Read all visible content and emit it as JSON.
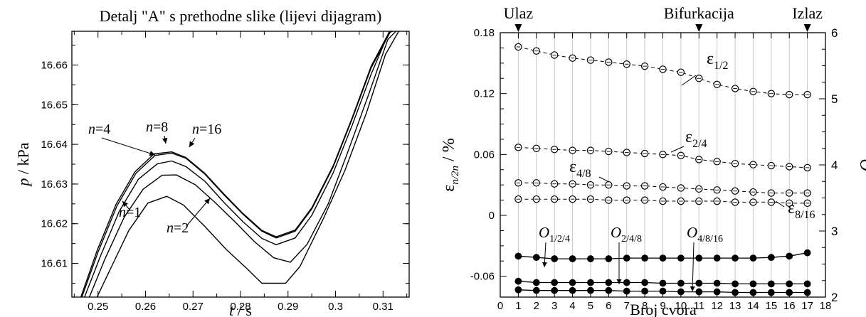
{
  "chart_data": [
    {
      "type": "line",
      "title": "Detalj \"A\" s prethodne slike (lijevi dijagram)",
      "xlabel": "t",
      "xunit": "s",
      "ylabel": "p",
      "yunit": "kPa",
      "xlim": [
        0.2445,
        0.3155
      ],
      "ylim": [
        16.6015,
        16.6685
      ],
      "xticks": [
        0.25,
        0.26,
        0.27,
        0.28,
        0.29,
        0.3,
        0.31
      ],
      "xtick_labels": [
        "0.25",
        "0.26",
        "0.27",
        "0.28",
        "0.29",
        "0.3",
        "0.31"
      ],
      "yticks": [
        16.61,
        16.62,
        16.63,
        16.64,
        16.65,
        16.66
      ],
      "ytick_labels": [
        "16.61",
        "16.62",
        "16.63",
        "16.64",
        "16.65",
        "16.66"
      ],
      "series": [
        {
          "name": "n=1",
          "x": [
            0.249,
            0.2525,
            0.2565,
            0.2605,
            0.2645,
            0.268,
            0.2725,
            0.277,
            0.2815,
            0.2845,
            0.2895,
            0.2925,
            0.2975,
            0.302,
            0.3065,
            0.3105,
            0.3133
          ],
          "y": [
            16.5995,
            16.6083,
            16.6183,
            16.6252,
            16.6269,
            16.6247,
            16.6193,
            16.6135,
            16.6085,
            16.605,
            16.605,
            16.6092,
            16.6214,
            16.6335,
            16.6479,
            16.6626,
            16.6685
          ]
        },
        {
          "name": "n=2",
          "x": [
            0.2475,
            0.2515,
            0.2555,
            0.2595,
            0.2635,
            0.2665,
            0.2705,
            0.2745,
            0.279,
            0.283,
            0.287,
            0.2905,
            0.294,
            0.2985,
            0.3025,
            0.307,
            0.311,
            0.3127
          ],
          "y": [
            16.5995,
            16.6112,
            16.6216,
            16.6287,
            16.6322,
            16.6323,
            16.6298,
            16.6255,
            16.6203,
            16.6154,
            16.6114,
            16.6103,
            16.6148,
            16.6251,
            16.6378,
            16.6527,
            16.6664,
            16.6685
          ]
        },
        {
          "name": "n=4",
          "x": [
            0.2465,
            0.2505,
            0.2545,
            0.2585,
            0.2625,
            0.2655,
            0.2685,
            0.2725,
            0.2765,
            0.2805,
            0.2845,
            0.2875,
            0.2915,
            0.295,
            0.2995,
            0.3035,
            0.3075,
            0.3112,
            0.312
          ],
          "y": [
            16.5995,
            16.6118,
            16.6232,
            16.6312,
            16.6351,
            16.6358,
            16.6344,
            16.6307,
            16.6254,
            16.6205,
            16.6163,
            16.6147,
            16.6164,
            16.6221,
            16.6328,
            16.6448,
            16.6577,
            16.6681,
            16.6685
          ]
        },
        {
          "name": "n=8",
          "x": [
            0.246,
            0.25,
            0.254,
            0.258,
            0.262,
            0.2655,
            0.2685,
            0.2725,
            0.2765,
            0.2805,
            0.2845,
            0.2875,
            0.2915,
            0.295,
            0.2995,
            0.3035,
            0.3075,
            0.3116
          ],
          "y": [
            16.5995,
            16.6128,
            16.6245,
            16.6327,
            16.6372,
            16.6378,
            16.6365,
            16.6325,
            16.6273,
            16.6224,
            16.6181,
            16.6164,
            16.6181,
            16.6237,
            16.6343,
            16.6464,
            16.6593,
            16.6685
          ]
        },
        {
          "name": "n=16",
          "x": [
            0.2458,
            0.2498,
            0.2538,
            0.2578,
            0.2618,
            0.2655,
            0.2685,
            0.2725,
            0.2765,
            0.2805,
            0.2845,
            0.2875,
            0.2915,
            0.295,
            0.2995,
            0.3035,
            0.3075,
            0.3114
          ],
          "y": [
            16.5995,
            16.6132,
            16.6249,
            16.6331,
            16.6376,
            16.6381,
            16.6367,
            16.6327,
            16.6275,
            16.6226,
            16.6183,
            16.6167,
            16.6184,
            16.624,
            16.6346,
            16.6467,
            16.6597,
            16.6685
          ]
        }
      ],
      "annotations": [
        {
          "text": "n=1",
          "target_series": "n=1"
        },
        {
          "text": "n=2",
          "target_series": "n=2"
        },
        {
          "text": "n=4",
          "target_series": "n=4"
        },
        {
          "text": "n=8",
          "target_series": "n=8"
        },
        {
          "text": "n=16",
          "target_series": "n=16"
        }
      ],
      "grid": false
    },
    {
      "type": "line",
      "title": "",
      "xlabel": "Broj cvora",
      "ylabel": "ε_{n/2n} / %",
      "y2label": "O",
      "xlim": [
        0,
        18
      ],
      "ylim": [
        -0.065,
        0.18
      ],
      "y2lim": [
        2,
        6
      ],
      "xticks": [
        0,
        1,
        2,
        3,
        4,
        5,
        6,
        7,
        8,
        9,
        10,
        11,
        12,
        13,
        14,
        15,
        16,
        17,
        18
      ],
      "xtick_labels": [
        "0",
        "1",
        "2",
        "3",
        "4",
        "5",
        "6",
        "7",
        "8",
        "9",
        "10",
        "11",
        "12",
        "13",
        "14",
        "15",
        "16",
        "17",
        "18"
      ],
      "yticks": [
        -0.06,
        0,
        0.06,
        0.12,
        0.18
      ],
      "ytick_labels": [
        "-0.06",
        "0",
        "0.06",
        "0.12",
        "0.18"
      ],
      "y2ticks": [
        2,
        3,
        4,
        5,
        6
      ],
      "y2tick_labels": [
        "2",
        "3",
        "4",
        "5",
        "6"
      ],
      "grid": "vertical",
      "top_markers": [
        {
          "label": "Ulaz",
          "x": 1
        },
        {
          "label": "Bifurkacija",
          "x": 11
        },
        {
          "label": "Izlaz",
          "x": 17
        }
      ],
      "x": [
        1,
        2,
        3,
        4,
        5,
        6,
        7,
        8,
        9,
        10,
        11,
        12,
        13,
        14,
        15,
        16,
        17
      ],
      "series": [
        {
          "name": "ε1/2",
          "axis": "left",
          "style": "dashed-open",
          "values": [
            0.166,
            0.162,
            0.158,
            0.155,
            0.153,
            0.151,
            0.149,
            0.147,
            0.144,
            0.141,
            0.135,
            0.129,
            0.125,
            0.122,
            0.12,
            0.119,
            0.119
          ]
        },
        {
          "name": "ε2/4",
          "axis": "left",
          "style": "dashed-open",
          "values": [
            0.067,
            0.066,
            0.065,
            0.064,
            0.064,
            0.063,
            0.062,
            0.061,
            0.06,
            0.059,
            0.055,
            0.053,
            0.051,
            0.05,
            0.049,
            0.048,
            0.047
          ]
        },
        {
          "name": "ε4/8",
          "axis": "left",
          "style": "dashed-open",
          "values": [
            0.032,
            0.032,
            0.031,
            0.031,
            0.03,
            0.03,
            0.029,
            0.029,
            0.028,
            0.027,
            0.026,
            0.025,
            0.024,
            0.023,
            0.022,
            0.022,
            0.022
          ]
        },
        {
          "name": "ε8/16",
          "axis": "left",
          "style": "dashed-open",
          "values": [
            0.016,
            0.016,
            0.016,
            0.016,
            0.016,
            0.015,
            0.015,
            0.015,
            0.014,
            0.014,
            0.014,
            0.014,
            0.013,
            0.013,
            0.013,
            0.012,
            0.012
          ]
        },
        {
          "name": "O1/2/4",
          "axis": "right",
          "style": "solid-filled",
          "values": [
            2.62,
            2.6,
            2.58,
            2.58,
            2.58,
            2.58,
            2.59,
            2.59,
            2.59,
            2.59,
            2.59,
            2.59,
            2.59,
            2.59,
            2.6,
            2.62,
            2.67
          ]
        },
        {
          "name": "O2/4/8",
          "axis": "right",
          "style": "solid-filled",
          "values": [
            2.24,
            2.22,
            2.22,
            2.22,
            2.22,
            2.22,
            2.22,
            2.22,
            2.21,
            2.21,
            2.21,
            2.21,
            2.2,
            2.2,
            2.2,
            2.2,
            2.2
          ]
        },
        {
          "name": "O4/8/16",
          "axis": "right",
          "style": "solid-filled",
          "values": [
            2.11,
            2.1,
            2.1,
            2.1,
            2.1,
            2.1,
            2.09,
            2.09,
            2.09,
            2.08,
            2.08,
            2.08,
            2.07,
            2.07,
            2.07,
            2.07,
            2.07
          ]
        }
      ],
      "annotations": [
        {
          "text": "ε1/2",
          "base": "ε",
          "sub": "1/2"
        },
        {
          "text": "ε2/4",
          "base": "ε",
          "sub": "2/4"
        },
        {
          "text": "ε4/8",
          "base": "ε",
          "sub": "4/8"
        },
        {
          "text": "ε8/16",
          "base": "ε",
          "sub": "8/16"
        },
        {
          "text": "O1/2/4",
          "base": "O",
          "sub": "1/2/4"
        },
        {
          "text": "O2/4/8",
          "base": "O",
          "sub": "2/4/8"
        },
        {
          "text": "O4/8/16",
          "base": "O",
          "sub": "4/8/16"
        }
      ]
    }
  ]
}
